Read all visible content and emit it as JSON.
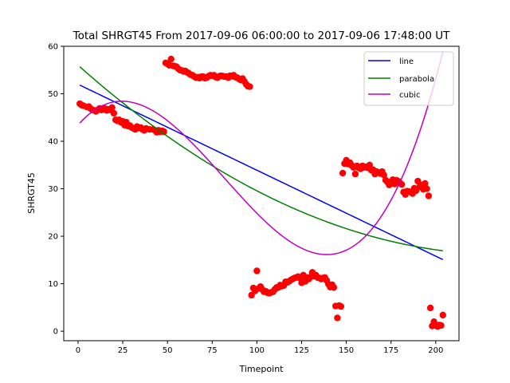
{
  "chart_data": {
    "type": "scatter",
    "title": "Total SHRGT45 From 2017-09-06 06:00:00 to 2017-09-06 17:48:00 UT",
    "xlabel": "Timepoint",
    "ylabel": "SHRGT45",
    "xlim": [
      -8,
      213
    ],
    "ylim": [
      -2,
      60
    ],
    "xticks": [
      0,
      25,
      50,
      75,
      100,
      125,
      150,
      175,
      200
    ],
    "yticks": [
      0,
      10,
      20,
      30,
      40,
      50,
      60
    ],
    "grid": false,
    "legend_position": "top-right",
    "colors": {
      "points": "#ff0000",
      "line": "#0000ff",
      "parabola": "#008000",
      "cubic": "#bf00bf"
    },
    "points": [
      [
        1,
        47.9
      ],
      [
        2,
        47.6
      ],
      [
        3,
        47.5
      ],
      [
        5,
        47.2
      ],
      [
        6,
        47.3
      ],
      [
        7,
        46.9
      ],
      [
        8,
        46.6
      ],
      [
        9,
        46.5
      ],
      [
        10,
        46.3
      ],
      [
        11,
        46.6
      ],
      [
        12,
        46.9
      ],
      [
        13,
        46.6
      ],
      [
        14,
        46.7
      ],
      [
        15,
        46.9
      ],
      [
        16,
        46.5
      ],
      [
        17,
        46.7
      ],
      [
        18,
        46.6
      ],
      [
        19,
        47.1
      ],
      [
        20,
        45.9
      ],
      [
        21,
        44.5
      ],
      [
        22,
        44.3
      ],
      [
        23,
        44.5
      ],
      [
        24,
        44.0
      ],
      [
        25,
        44.2
      ],
      [
        26,
        43.4
      ],
      [
        27,
        44.0
      ],
      [
        28,
        43.2
      ],
      [
        29,
        43.3
      ],
      [
        30,
        42.9
      ],
      [
        31,
        42.7
      ],
      [
        32,
        42.5
      ],
      [
        33,
        43.1
      ],
      [
        34,
        42.8
      ],
      [
        35,
        42.9
      ],
      [
        36,
        42.5
      ],
      [
        37,
        42.3
      ],
      [
        38,
        42.7
      ],
      [
        40,
        42.5
      ],
      [
        42,
        42.5
      ],
      [
        43,
        42.3
      ],
      [
        44,
        41.9
      ],
      [
        45,
        42.3
      ],
      [
        46,
        42.0
      ],
      [
        47,
        42.2
      ],
      [
        48,
        42.0
      ],
      [
        49,
        56.5
      ],
      [
        50,
        56.3
      ],
      [
        51,
        56.0
      ],
      [
        52,
        57.3
      ],
      [
        53,
        55.9
      ],
      [
        54,
        55.8
      ],
      [
        55,
        55.7
      ],
      [
        56,
        55.3
      ],
      [
        57,
        55.0
      ],
      [
        58,
        54.9
      ],
      [
        59,
        54.7
      ],
      [
        60,
        54.8
      ],
      [
        61,
        54.5
      ],
      [
        62,
        54.3
      ],
      [
        63,
        54.0
      ],
      [
        64,
        53.9
      ],
      [
        65,
        53.6
      ],
      [
        66,
        53.4
      ],
      [
        67,
        53.5
      ],
      [
        68,
        53.3
      ],
      [
        69,
        53.6
      ],
      [
        70,
        53.6
      ],
      [
        71,
        53.3
      ],
      [
        72,
        53.4
      ],
      [
        73,
        53.7
      ],
      [
        74,
        53.9
      ],
      [
        75,
        53.8
      ],
      [
        76,
        53.9
      ],
      [
        77,
        53.5
      ],
      [
        78,
        53.4
      ],
      [
        79,
        53.7
      ],
      [
        80,
        53.8
      ],
      [
        81,
        53.7
      ],
      [
        82,
        53.6
      ],
      [
        83,
        53.6
      ],
      [
        84,
        53.4
      ],
      [
        85,
        53.8
      ],
      [
        86,
        53.7
      ],
      [
        87,
        53.9
      ],
      [
        88,
        53.5
      ],
      [
        89,
        53.4
      ],
      [
        90,
        53.1
      ],
      [
        91,
        52.9
      ],
      [
        92,
        53.2
      ],
      [
        93,
        52.6
      ],
      [
        94,
        52.0
      ],
      [
        95,
        51.6
      ],
      [
        96,
        51.5
      ],
      [
        97,
        7.6
      ],
      [
        98,
        9.1
      ],
      [
        99,
        8.5
      ],
      [
        100,
        12.7
      ],
      [
        101,
        9.0
      ],
      [
        102,
        9.4
      ],
      [
        103,
        8.8
      ],
      [
        104,
        8.3
      ],
      [
        105,
        8.4
      ],
      [
        106,
        8.1
      ],
      [
        107,
        8.0
      ],
      [
        108,
        8.2
      ],
      [
        109,
        8.3
      ],
      [
        110,
        8.8
      ],
      [
        111,
        9.2
      ],
      [
        112,
        9.2
      ],
      [
        113,
        9.7
      ],
      [
        114,
        9.5
      ],
      [
        115,
        9.6
      ],
      [
        116,
        10.4
      ],
      [
        117,
        10.3
      ],
      [
        118,
        10.5
      ],
      [
        119,
        10.8
      ],
      [
        120,
        11.0
      ],
      [
        121,
        11.2
      ],
      [
        122,
        11.3
      ],
      [
        123,
        11.5
      ],
      [
        124,
        11.2
      ],
      [
        125,
        10.2
      ],
      [
        126,
        11.8
      ],
      [
        127,
        10.5
      ],
      [
        128,
        11.3
      ],
      [
        129,
        11.0
      ],
      [
        130,
        11.4
      ],
      [
        131,
        12.4
      ],
      [
        132,
        11.6
      ],
      [
        133,
        11.8
      ],
      [
        134,
        11.3
      ],
      [
        135,
        11.2
      ],
      [
        136,
        11.0
      ],
      [
        137,
        11.2
      ],
      [
        138,
        11.3
      ],
      [
        139,
        10.7
      ],
      [
        140,
        9.9
      ],
      [
        141,
        9.3
      ],
      [
        142,
        9.8
      ],
      [
        143,
        9.2
      ],
      [
        144,
        5.3
      ],
      [
        145,
        2.8
      ],
      [
        146,
        5.4
      ],
      [
        147,
        5.2
      ],
      [
        148,
        33.3
      ],
      [
        149,
        35.3
      ],
      [
        150,
        36.0
      ],
      [
        151,
        35.2
      ],
      [
        152,
        35.5
      ],
      [
        153,
        34.9
      ],
      [
        154,
        34.5
      ],
      [
        155,
        33.1
      ],
      [
        156,
        34.8
      ],
      [
        157,
        34.4
      ],
      [
        158,
        34.2
      ],
      [
        159,
        34.8
      ],
      [
        160,
        34.5
      ],
      [
        161,
        34.6
      ],
      [
        162,
        34.4
      ],
      [
        163,
        35.0
      ],
      [
        164,
        33.9
      ],
      [
        165,
        34.0
      ],
      [
        166,
        33.1
      ],
      [
        167,
        33.6
      ],
      [
        168,
        33.4
      ],
      [
        169,
        33.2
      ],
      [
        170,
        33.6
      ],
      [
        171,
        32.9
      ],
      [
        172,
        31.8
      ],
      [
        173,
        31.4
      ],
      [
        174,
        30.8
      ],
      [
        175,
        31.5
      ],
      [
        176,
        31.9
      ],
      [
        177,
        31.0
      ],
      [
        178,
        31.8
      ],
      [
        179,
        31.6
      ],
      [
        180,
        31.2
      ],
      [
        181,
        30.9
      ],
      [
        182,
        29.3
      ],
      [
        183,
        28.8
      ],
      [
        184,
        29.5
      ],
      [
        185,
        29.4
      ],
      [
        186,
        29.3
      ],
      [
        187,
        29.0
      ],
      [
        188,
        30.1
      ],
      [
        189,
        29.6
      ],
      [
        190,
        31.6
      ],
      [
        191,
        30.4
      ],
      [
        192,
        30.8
      ],
      [
        193,
        29.9
      ],
      [
        194,
        31.1
      ],
      [
        195,
        30.0
      ],
      [
        196,
        28.5
      ],
      [
        197,
        4.9
      ],
      [
        198,
        1.1
      ],
      [
        199,
        2.0
      ],
      [
        200,
        1.2
      ],
      [
        201,
        1.0
      ],
      [
        202,
        1.3
      ],
      [
        203,
        1.2
      ],
      [
        204,
        3.4
      ]
    ],
    "series": [
      {
        "name": "line",
        "type": "line",
        "x_range": [
          1,
          204
        ],
        "coefficients_low_to_high": [
          52.0,
          -0.181
        ]
      },
      {
        "name": "parabola",
        "type": "line",
        "x_range": [
          1,
          204
        ],
        "coefficients_low_to_high": [
          56.01,
          -0.3347,
          0.000702
        ]
      },
      {
        "name": "cubic",
        "type": "line",
        "x_range": [
          1,
          204
        ],
        "coefficients_low_to_high": [
          43.41,
          0.43665,
          -0.0105085,
          4.28456e-05
        ]
      }
    ]
  }
}
